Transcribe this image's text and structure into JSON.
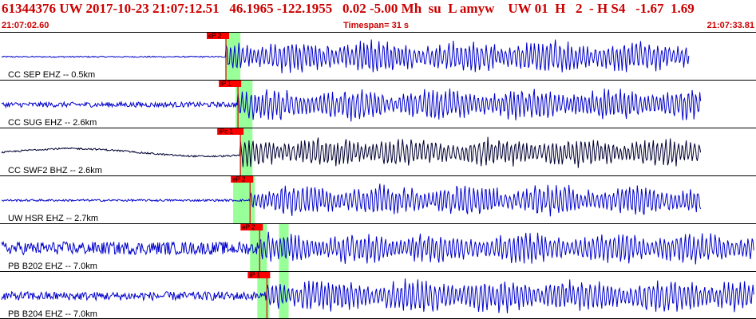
{
  "header": {
    "line": "61344376 UW 2017-10-23 21:07:12.51   46.1965 -122.1955   0.02 -5.00 Mh  su  L amyw    UW 01  H   2  - H S4   -1.67  1.69"
  },
  "timebar": {
    "start": "21:07:02.60",
    "timespan": "Timespan=  31 s",
    "end": "21:07:33.81"
  },
  "colors": {
    "header_text": "#cc0000",
    "trace_blue": "#0000cc",
    "trace_dark": "#000033",
    "pick_line": "#dd0000",
    "pick_flag": "#ff0000",
    "window_green": "#99ff99",
    "separator": "#000000"
  },
  "chart_data": {
    "type": "line",
    "title": "",
    "xlabel": "",
    "ylabel": "",
    "x_unit": "seconds from window start",
    "xlim": [
      0,
      31.21
    ],
    "grid": false,
    "traces": [
      {
        "label": "CC SEP EHZ -- 0.5km",
        "pick": "eP 2",
        "pick_time": 9.3,
        "green_window": [
          9.3,
          9.9
        ],
        "color": "blue",
        "pre_amp": 0.03,
        "post_amp": 0.85,
        "end_time": 28.5
      },
      {
        "label": "CC SUG EHZ -- 2.6km",
        "pick": "iP 1",
        "pick_time": 9.8,
        "green_window": [
          9.7,
          10.4
        ],
        "color": "blue",
        "pre_amp": 0.12,
        "post_amp": 0.8,
        "end_time": 29.0
      },
      {
        "label": "CC SWF2 BHZ -- 2.6km",
        "pick": "iPc 1",
        "pick_time": 9.9,
        "green_window": [
          9.9,
          10.4
        ],
        "color": "dark",
        "pre_amp": 0.18,
        "post_amp": 0.75,
        "end_time": 29.0,
        "long_period": true
      },
      {
        "label": "UW HSR EHZ -- 2.7km",
        "pick": "eP 2",
        "pick_time": 10.3,
        "green_window": [
          9.6,
          10.5
        ],
        "color": "blue",
        "pre_amp": 0.05,
        "post_amp": 0.8,
        "end_time": 29.0
      },
      {
        "label": "PB B202 EHZ -- 7.0km",
        "pick": "eP 2",
        "pick_time": 10.7,
        "green_window": [
          10.3,
          11.0
        ],
        "s_window": [
          11.5,
          11.9
        ],
        "color": "blue",
        "pre_amp": 0.3,
        "post_amp": 0.8,
        "end_time": 31.21
      },
      {
        "label": "PB B204 EHZ -- 7.0km",
        "pick": "iP 1",
        "pick_time": 11.0,
        "green_window": [
          10.6,
          11.1
        ],
        "s_window": [
          11.5,
          11.9
        ],
        "color": "blue",
        "pre_amp": 0.2,
        "post_amp": 0.85,
        "end_time": 31.21
      }
    ]
  }
}
